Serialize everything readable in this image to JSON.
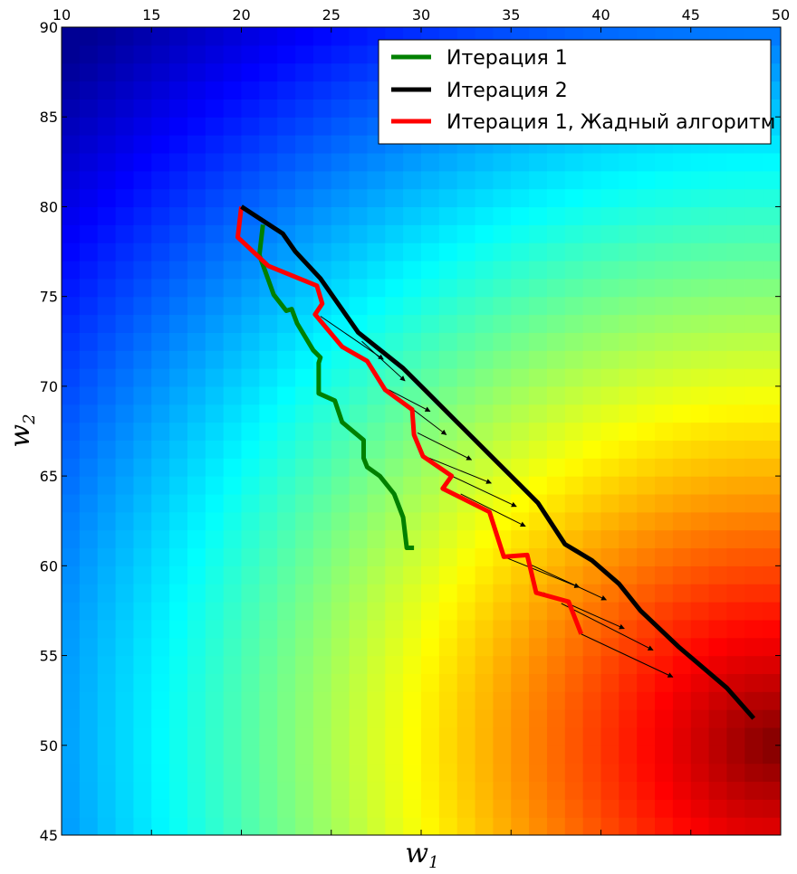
{
  "chart_data": {
    "type": "heatmap",
    "title": "",
    "xlabel": "w",
    "xlabel_sub": "1",
    "ylabel": "w",
    "ylabel_sub": "2",
    "xlim": [
      10,
      50
    ],
    "ylim": [
      45,
      90
    ],
    "x_ticks": [
      10,
      15,
      20,
      25,
      30,
      35,
      40,
      45,
      50
    ],
    "y_ticks": [
      45,
      50,
      55,
      60,
      65,
      70,
      75,
      80,
      85,
      90
    ],
    "x_tick_position": "top",
    "grid": false,
    "legend_position": "top-right",
    "colormap": "jet",
    "heatmap": {
      "cell_size": 1,
      "value_range": [
        0,
        1
      ],
      "cells_per_axis": [
        40,
        45
      ],
      "peak": [
        49.5,
        50
      ],
      "min_corner": [
        10,
        90
      ]
    },
    "series": [
      {
        "name": "Итерация 1",
        "color": "#008000",
        "line_width": 5,
        "x": [
          29.6,
          29.2,
          29.0,
          28.5,
          27.7,
          27.0,
          26.8,
          26.8,
          25.6,
          25.2,
          24.3,
          24.3,
          24.4,
          24.0,
          23.1,
          22.8,
          22.5,
          21.8,
          21.0,
          21.2
        ],
        "y": [
          61.0,
          61.0,
          62.7,
          64.0,
          65.0,
          65.5,
          66.0,
          67.0,
          68.0,
          69.2,
          69.6,
          71.3,
          71.6,
          72.0,
          73.5,
          74.3,
          74.2,
          75.1,
          77.3,
          79.0
        ]
      },
      {
        "name": "Итерация 2",
        "color": "#000000",
        "line_width": 5,
        "x": [
          20.0,
          22.3,
          23.0,
          24.4,
          26.5,
          29.0,
          30.3,
          32.0,
          34.0,
          35.5,
          36.5,
          38.0,
          39.5,
          41.0,
          42.2,
          44.3,
          47.0,
          48.5
        ],
        "y": [
          80.0,
          78.5,
          77.5,
          76.0,
          73.0,
          71.0,
          69.7,
          68.0,
          66.0,
          64.5,
          63.5,
          61.2,
          60.3,
          59.0,
          57.5,
          55.5,
          53.2,
          51.5
        ]
      },
      {
        "name": "Итерация 1, Жадный алгоритм",
        "color": "#ff0000",
        "line_width": 5,
        "x": [
          20.0,
          19.8,
          21.5,
          24.2,
          24.5,
          24.1,
          25.6,
          27.0,
          28.0,
          29.5,
          29.6,
          30.1,
          31.7,
          31.2,
          33.8,
          34.6,
          35.9,
          36.4,
          38.2,
          38.9
        ],
        "y": [
          80.0,
          78.3,
          76.7,
          75.6,
          74.6,
          74.0,
          72.2,
          71.4,
          69.8,
          68.7,
          67.3,
          66.1,
          65.0,
          64.3,
          63.0,
          60.5,
          60.6,
          58.5,
          58.0,
          56.2
        ]
      }
    ],
    "arrows": [
      {
        "x1": 24.4,
        "y1": 73.9,
        "x2": 27.9,
        "y2": 71.5
      },
      {
        "x1": 26.7,
        "y1": 72.5,
        "x2": 29.1,
        "y2": 70.3
      },
      {
        "x1": 28.2,
        "y1": 69.8,
        "x2": 30.5,
        "y2": 68.6
      },
      {
        "x1": 29.3,
        "y1": 68.9,
        "x2": 31.4,
        "y2": 67.3
      },
      {
        "x1": 29.8,
        "y1": 67.4,
        "x2": 32.8,
        "y2": 65.9
      },
      {
        "x1": 30.2,
        "y1": 66.1,
        "x2": 33.9,
        "y2": 64.6
      },
      {
        "x1": 31.7,
        "y1": 65.0,
        "x2": 35.3,
        "y2": 63.3
      },
      {
        "x1": 32.2,
        "y1": 64.0,
        "x2": 35.8,
        "y2": 62.2
      },
      {
        "x1": 34.6,
        "y1": 60.5,
        "x2": 38.8,
        "y2": 58.8
      },
      {
        "x1": 36.0,
        "y1": 60.1,
        "x2": 40.3,
        "y2": 58.1
      },
      {
        "x1": 36.8,
        "y1": 58.5,
        "x2": 41.3,
        "y2": 56.5
      },
      {
        "x1": 37.8,
        "y1": 57.9,
        "x2": 42.9,
        "y2": 55.3
      },
      {
        "x1": 38.9,
        "y1": 56.2,
        "x2": 44.0,
        "y2": 53.8
      }
    ]
  }
}
